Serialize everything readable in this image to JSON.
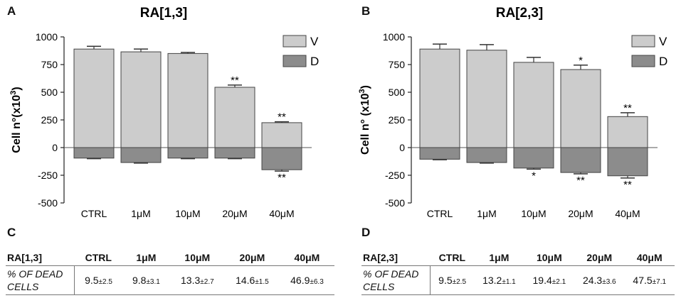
{
  "panels": {
    "A": "A",
    "B": "B",
    "C": "C",
    "D": "D"
  },
  "chart_data": [
    {
      "type": "bar",
      "stacked": true,
      "title": "RA[1,3]",
      "ylabel": "Cell n°(x10³)",
      "ylabel_parts": [
        "Cell n°(x10",
        "3",
        ")"
      ],
      "xlabel": "",
      "categories": [
        "CTRL",
        "1μM",
        "10μM",
        "20μM",
        "40μM"
      ],
      "ylim": [
        -500,
        1000
      ],
      "yticks": [
        1000,
        750,
        500,
        250,
        0,
        -250,
        -500
      ],
      "series": [
        {
          "name": "V",
          "values": [
            890,
            865,
            850,
            545,
            225
          ],
          "errors": [
            25,
            25,
            10,
            20,
            8
          ],
          "color": "#cccccc",
          "annotations": [
            "",
            "",
            "",
            "**",
            "**"
          ]
        },
        {
          "name": "D",
          "values": [
            -95,
            -135,
            -95,
            -95,
            -200
          ],
          "errors": [
            5,
            5,
            5,
            5,
            12
          ],
          "color": "#8c8c8c",
          "annotations": [
            "",
            "",
            "",
            "",
            "**"
          ]
        }
      ],
      "legend": [
        "V",
        "D"
      ],
      "legend_position": "top-right"
    },
    {
      "type": "bar",
      "stacked": true,
      "title": "RA[2,3]",
      "ylabel": "Cell n° (x10³)",
      "ylabel_parts": [
        "Cell n° (x10",
        "3",
        ")"
      ],
      "xlabel": "",
      "categories": [
        "CTRL",
        "1μM",
        "10μM",
        "20μM",
        "40μM"
      ],
      "ylim": [
        -500,
        1000
      ],
      "yticks": [
        1000,
        750,
        500,
        250,
        0,
        -250,
        -500
      ],
      "series": [
        {
          "name": "V",
          "values": [
            890,
            880,
            770,
            705,
            280
          ],
          "errors": [
            45,
            50,
            45,
            40,
            35
          ],
          "color": "#cccccc",
          "annotations": [
            "",
            "",
            "",
            "*",
            "**"
          ]
        },
        {
          "name": "D",
          "values": [
            -105,
            -135,
            -185,
            -225,
            -255
          ],
          "errors": [
            5,
            5,
            10,
            12,
            20
          ],
          "color": "#8c8c8c",
          "annotations": [
            "",
            "",
            "*",
            "**",
            "**"
          ]
        }
      ],
      "legend": [
        "V",
        "D"
      ],
      "legend_position": "top-right"
    }
  ],
  "tables": [
    {
      "label": "RA[1,3]",
      "columns": [
        "CTRL",
        "1μM",
        "10μM",
        "20μM",
        "40μM"
      ],
      "row_label": "% OF DEAD CELLS",
      "values": [
        "9.5",
        "9.8",
        "13.3",
        "14.6",
        "46.9"
      ],
      "sd": [
        "±2.5",
        "±3.1",
        "±2.7",
        "±1.5",
        "±6.3"
      ]
    },
    {
      "label": "RA[2,3]",
      "columns": [
        "CTRL",
        "1μM",
        "10μM",
        "20μM",
        "40μM"
      ],
      "row_label": "% OF DEAD CELLS",
      "values": [
        "9.5",
        "13.2",
        "19.4",
        "24.3",
        "47.5"
      ],
      "sd": [
        "±2.5",
        "±1.1",
        "±2.1",
        "±3.6",
        "±7.1"
      ]
    }
  ]
}
